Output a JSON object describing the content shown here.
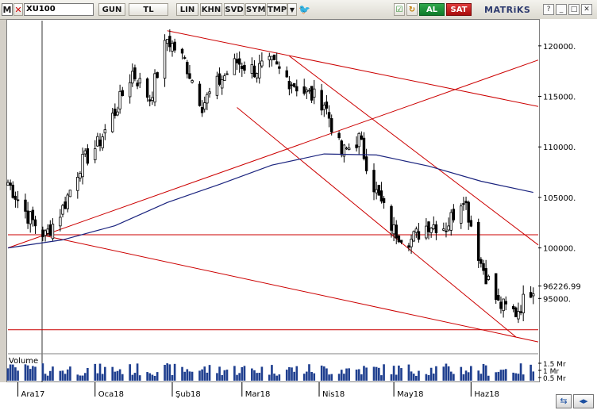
{
  "toolbar": {
    "menu_label": "M",
    "close_label": "✕",
    "symbol": "XU100",
    "buttons": [
      "GUN",
      "TL",
      "LIN",
      "KHN",
      "SVD",
      "SYM",
      "TMP"
    ],
    "dropdown_icon": "triangle-down-icon",
    "twitter_icon": "twitter-bird-icon",
    "buy_label": "AL",
    "sell_label": "SAT",
    "brand": "MATRiKS",
    "window_controls": [
      "?",
      "_",
      "□",
      "✕"
    ]
  },
  "colors": {
    "candle_up": "#ffffff",
    "candle_down": "#000000",
    "trendline": "#cc0000",
    "moving_average": "#1a237e",
    "volume": "#1f3f8f"
  },
  "chart_data": {
    "type": "candlestick",
    "title": "",
    "ylim": [
      90000,
      122500
    ],
    "y_ticks": [
      95000,
      100000,
      105000,
      110000,
      115000,
      120000
    ],
    "y_tick_labels": [
      "95000.",
      "100000.",
      "105000.",
      "110000.",
      "115000.",
      "120000."
    ],
    "last_value": 96226.99,
    "last_value_label": "96226.99",
    "x_tick_labels": [
      "Ara17",
      "Oca18",
      "Şub18",
      "Mar18",
      "Nis18",
      "May18",
      "Haz18"
    ],
    "volume_label": "Volume",
    "volume_ticks": [
      "1.5 Mr",
      "1 Mr",
      "0.5 Mr"
    ],
    "close_path": [
      {
        "date": "2017-11-27",
        "close": 106500
      },
      {
        "date": "2017-12-05",
        "close": 103200
      },
      {
        "date": "2017-12-12",
        "close": 101200
      },
      {
        "date": "2017-12-19",
        "close": 103900
      },
      {
        "date": "2017-12-26",
        "close": 108200
      },
      {
        "date": "2018-01-02",
        "close": 110200
      },
      {
        "date": "2018-01-09",
        "close": 113500
      },
      {
        "date": "2018-01-16",
        "close": 117400
      },
      {
        "date": "2018-01-23",
        "close": 114800
      },
      {
        "date": "2018-01-30",
        "close": 120700
      },
      {
        "date": "2018-02-06",
        "close": 118500
      },
      {
        "date": "2018-02-13",
        "close": 114200
      },
      {
        "date": "2018-02-20",
        "close": 116500
      },
      {
        "date": "2018-02-27",
        "close": 118400
      },
      {
        "date": "2018-03-06",
        "close": 117600
      },
      {
        "date": "2018-03-13",
        "close": 118200
      },
      {
        "date": "2018-03-20",
        "close": 116600
      },
      {
        "date": "2018-03-27",
        "close": 115300
      },
      {
        "date": "2018-04-03",
        "close": 114400
      },
      {
        "date": "2018-04-10",
        "close": 109300
      },
      {
        "date": "2018-04-17",
        "close": 110800
      },
      {
        "date": "2018-04-24",
        "close": 105400
      },
      {
        "date": "2018-05-01",
        "close": 101700
      },
      {
        "date": "2018-05-08",
        "close": 100800
      },
      {
        "date": "2018-05-15",
        "close": 102400
      },
      {
        "date": "2018-05-22",
        "close": 102100
      },
      {
        "date": "2018-05-29",
        "close": 105200
      },
      {
        "date": "2018-06-05",
        "close": 98500
      },
      {
        "date": "2018-06-12",
        "close": 94400
      },
      {
        "date": "2018-06-19",
        "close": 93600
      },
      {
        "date": "2018-06-26",
        "close": 96226.99
      }
    ],
    "moving_average": [
      {
        "date": "2017-11-27",
        "value": 100000
      },
      {
        "date": "2017-12-19",
        "value": 100800
      },
      {
        "date": "2018-01-09",
        "value": 102200
      },
      {
        "date": "2018-01-30",
        "value": 104500
      },
      {
        "date": "2018-02-20",
        "value": 106300
      },
      {
        "date": "2018-03-13",
        "value": 108200
      },
      {
        "date": "2018-04-03",
        "value": 109300
      },
      {
        "date": "2018-04-24",
        "value": 109200
      },
      {
        "date": "2018-05-15",
        "value": 108100
      },
      {
        "date": "2018-06-05",
        "value": 106600
      },
      {
        "date": "2018-06-26",
        "value": 105500
      }
    ],
    "trendlines": [
      {
        "from": [
          "2017-11-27",
          100000
        ],
        "to": [
          "2018-06-28",
          118600
        ]
      },
      {
        "from": [
          "2017-12-12",
          101200
        ],
        "to": [
          "2018-06-28",
          90700
        ]
      },
      {
        "from": [
          "2018-01-30",
          121500
        ],
        "to": [
          "2018-06-28",
          114000
        ]
      },
      {
        "from": [
          "2018-02-27",
          113900
        ],
        "to": [
          "2018-06-19",
          91200
        ]
      },
      {
        "from": [
          "2018-03-20",
          119000
        ],
        "to": [
          "2018-06-28",
          100300
        ]
      },
      {
        "level": 101300
      },
      {
        "level": 91900
      }
    ]
  }
}
